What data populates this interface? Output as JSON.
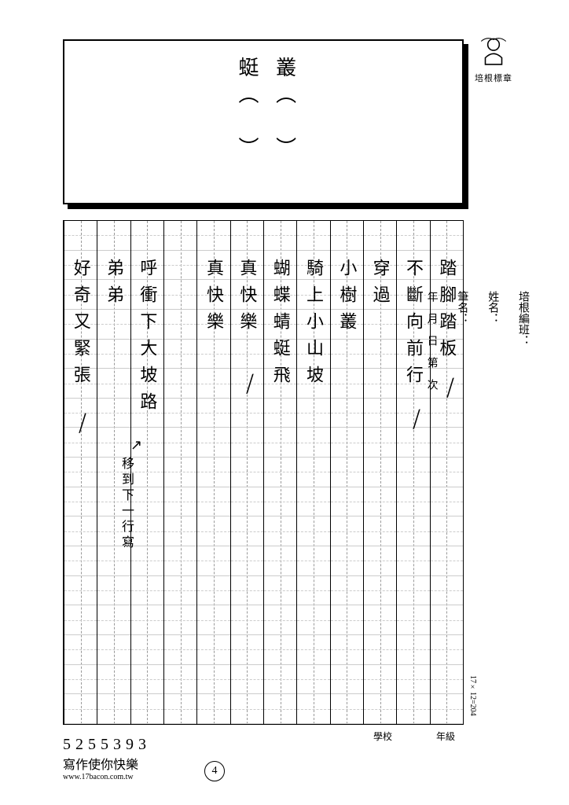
{
  "badge_label": "培根標章",
  "top_box": {
    "chars": [
      "叢（　）",
      "蜓（　）"
    ]
  },
  "side": {
    "class": "培根編班：",
    "name": "姓名：",
    "penname": "筆名：",
    "date": "年　月　日　第　次"
  },
  "grid": {
    "rows": 17,
    "cols": 12,
    "dim_label": "17×12=204",
    "columns": [
      "踏腳踏板",
      "不斷向前行",
      "穿過",
      "小樹叢",
      "騎上小山坡",
      "蝴蝶蜻蜓飛",
      "真快樂",
      "真快樂",
      "",
      "呼衝下大坡路",
      "弟弟",
      "好奇又緊張"
    ],
    "annotations": {
      "move_note": "移到下一行寫",
      "arrow": "↗"
    },
    "meta_school": "學校",
    "meta_grade": "年級"
  },
  "footer": {
    "number": "5255393",
    "slogan": "寫作使你快樂",
    "url": "www.17bacon.com.tw",
    "page_no": "4"
  }
}
